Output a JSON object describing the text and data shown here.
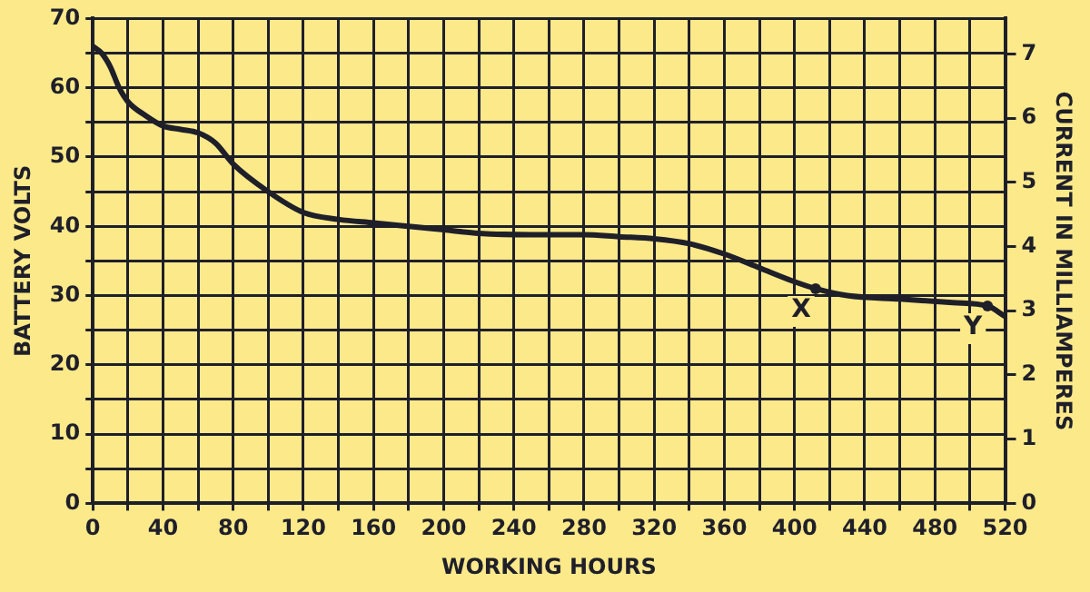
{
  "chart_data": {
    "type": "line",
    "xlabel": "WORKING HOURS",
    "ylabel": "BATTERY VOLTS",
    "y2label": "CURRENT IN MILLIAMPERES",
    "x": [
      0,
      5,
      10,
      15,
      20,
      30,
      40,
      50,
      60,
      70,
      80,
      100,
      120,
      140,
      160,
      180,
      200,
      220,
      250,
      280,
      300,
      320,
      340,
      360,
      380,
      400,
      412,
      430,
      460,
      490,
      510,
      520
    ],
    "series": [
      {
        "color": "#1f1f2a",
        "values": [
          66,
          65,
          63,
          60,
          58,
          56,
          54.5,
          54,
          53.5,
          52,
          49,
          45,
          42,
          41,
          40.5,
          40,
          39.5,
          39,
          38.8,
          38.8,
          38.5,
          38.2,
          37.5,
          36,
          34,
          32,
          31,
          30,
          29.5,
          29,
          28.5,
          27
        ]
      }
    ],
    "xlim": [
      0,
      520
    ],
    "xticks": [
      0,
      {
        "value": 20,
        "label": null
      },
      40,
      {
        "value": 60,
        "label": null
      },
      80,
      {
        "value": 100,
        "label": null
      },
      120,
      {
        "value": 140,
        "label": null
      },
      160,
      {
        "value": 180,
        "label": null
      },
      200,
      {
        "value": 220,
        "label": null
      },
      240,
      {
        "value": 260,
        "label": null
      },
      280,
      {
        "value": 300,
        "label": null
      },
      320,
      {
        "value": 340,
        "label": null
      },
      360,
      {
        "value": 380,
        "label": null
      },
      400,
      {
        "value": 420,
        "label": null
      },
      440,
      {
        "value": 460,
        "label": null
      },
      480,
      {
        "value": 500,
        "label": null
      },
      520
    ],
    "ylim": [
      0,
      70
    ],
    "yticks": [
      0,
      {
        "value": 5,
        "label": null
      },
      10,
      {
        "value": 15,
        "label": null
      },
      20,
      {
        "value": 25,
        "label": null
      },
      30,
      {
        "value": 35,
        "label": null
      },
      40,
      {
        "value": 45,
        "label": null
      },
      50,
      {
        "value": 55,
        "label": null
      },
      60,
      {
        "value": 65,
        "label": null
      },
      70
    ],
    "y2lim": [
      0,
      7.55
    ],
    "y2ticks": [
      0,
      1,
      2,
      3,
      4,
      5,
      6,
      7
    ],
    "annotations": [
      {
        "text": "X",
        "x": 412,
        "y": 31
      },
      {
        "text": "Y",
        "x": 510,
        "y": 28.5
      }
    ],
    "grid": true,
    "legend": false,
    "marker": "none",
    "line_style": "solid"
  }
}
